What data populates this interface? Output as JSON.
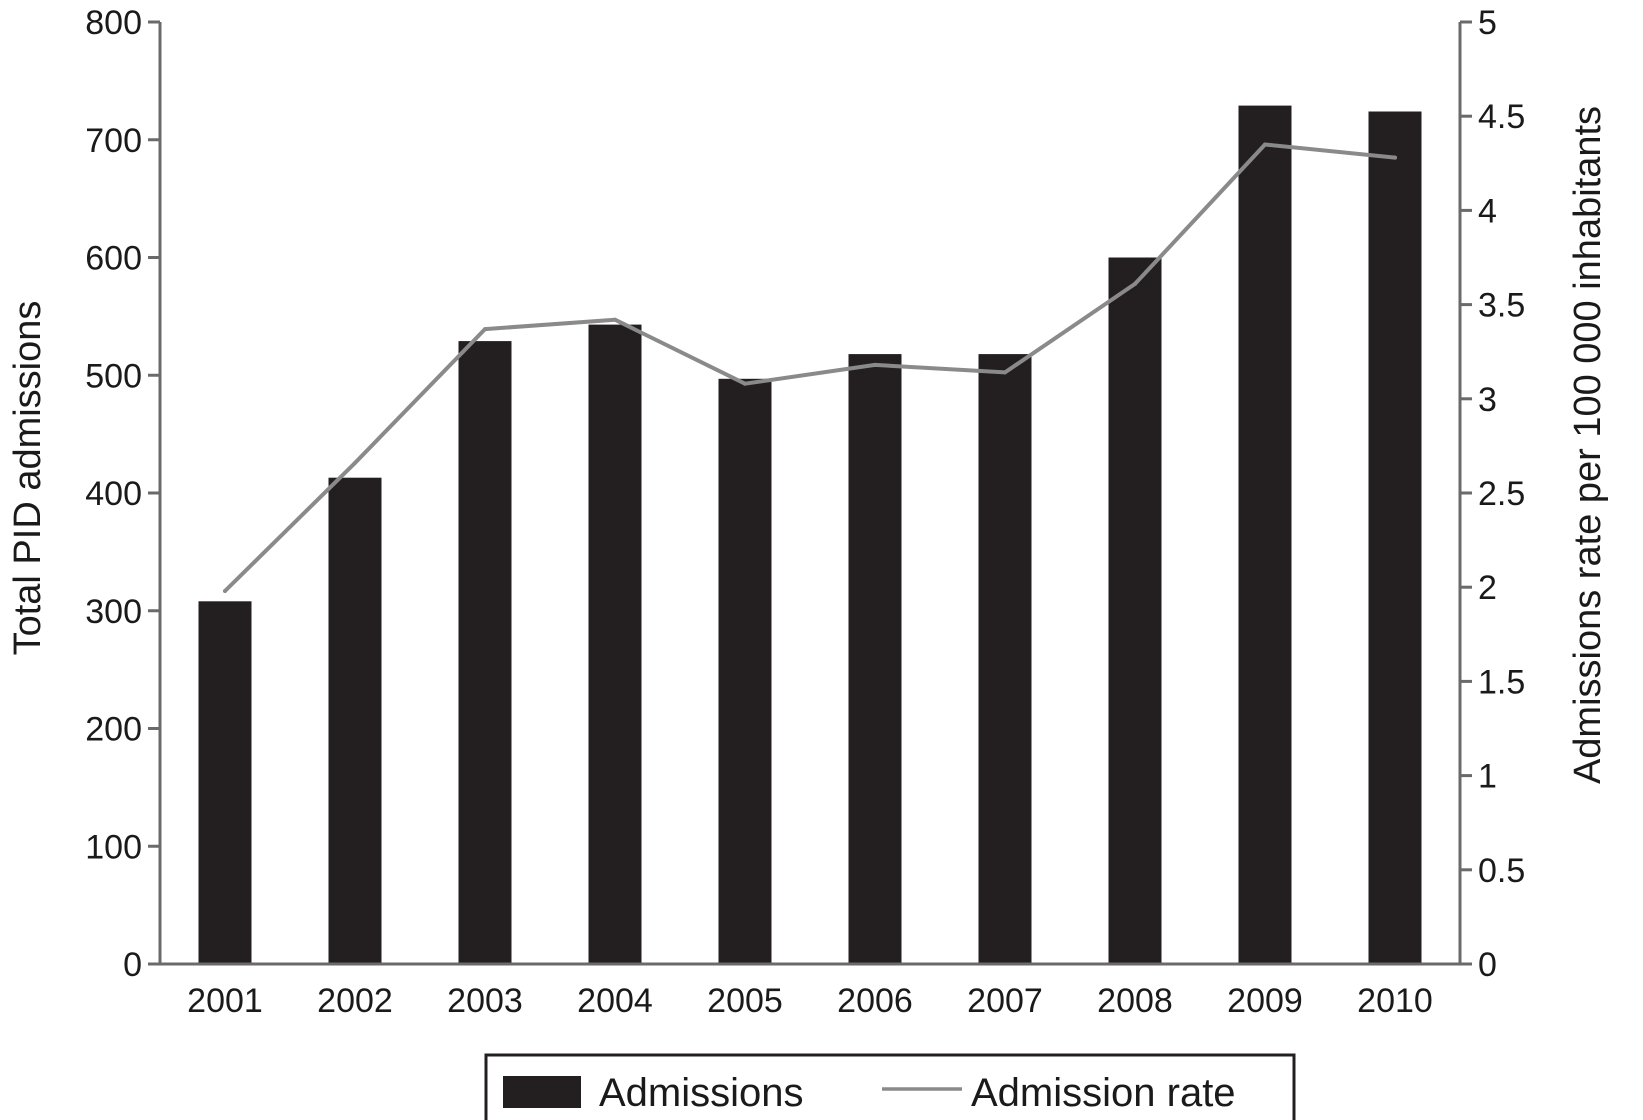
{
  "chart_data": {
    "type": "bar",
    "categories": [
      "2001",
      "2002",
      "2003",
      "2004",
      "2005",
      "2006",
      "2007",
      "2008",
      "2009",
      "2010"
    ],
    "series": [
      {
        "name": "Admissions",
        "type": "bar",
        "axis": "left",
        "values": [
          308,
          413,
          529,
          543,
          497,
          518,
          518,
          600,
          729,
          724
        ]
      },
      {
        "name": "Admission rate",
        "type": "line",
        "axis": "right",
        "values": [
          1.98,
          2.66,
          3.37,
          3.42,
          3.08,
          3.18,
          3.14,
          3.61,
          4.35,
          4.28
        ]
      }
    ],
    "ylabel": "Total PID admissions",
    "y2label": "Admissions rate per 100 000 inhabitants",
    "ylim": [
      0,
      800
    ],
    "y2lim": [
      0,
      5
    ],
    "yticks": [
      "0",
      "100",
      "200",
      "300",
      "400",
      "500",
      "600",
      "700",
      "800"
    ],
    "y2ticks": [
      "0",
      "0.5",
      "1",
      "1.5",
      "2",
      "2.5",
      "3",
      "3.5",
      "4",
      "4.5",
      "5"
    ],
    "colors": {
      "bars": "#231f20",
      "line": "#8a8a8a",
      "axis": "#6a6a6a"
    },
    "legend": {
      "placement": "bottom"
    }
  }
}
